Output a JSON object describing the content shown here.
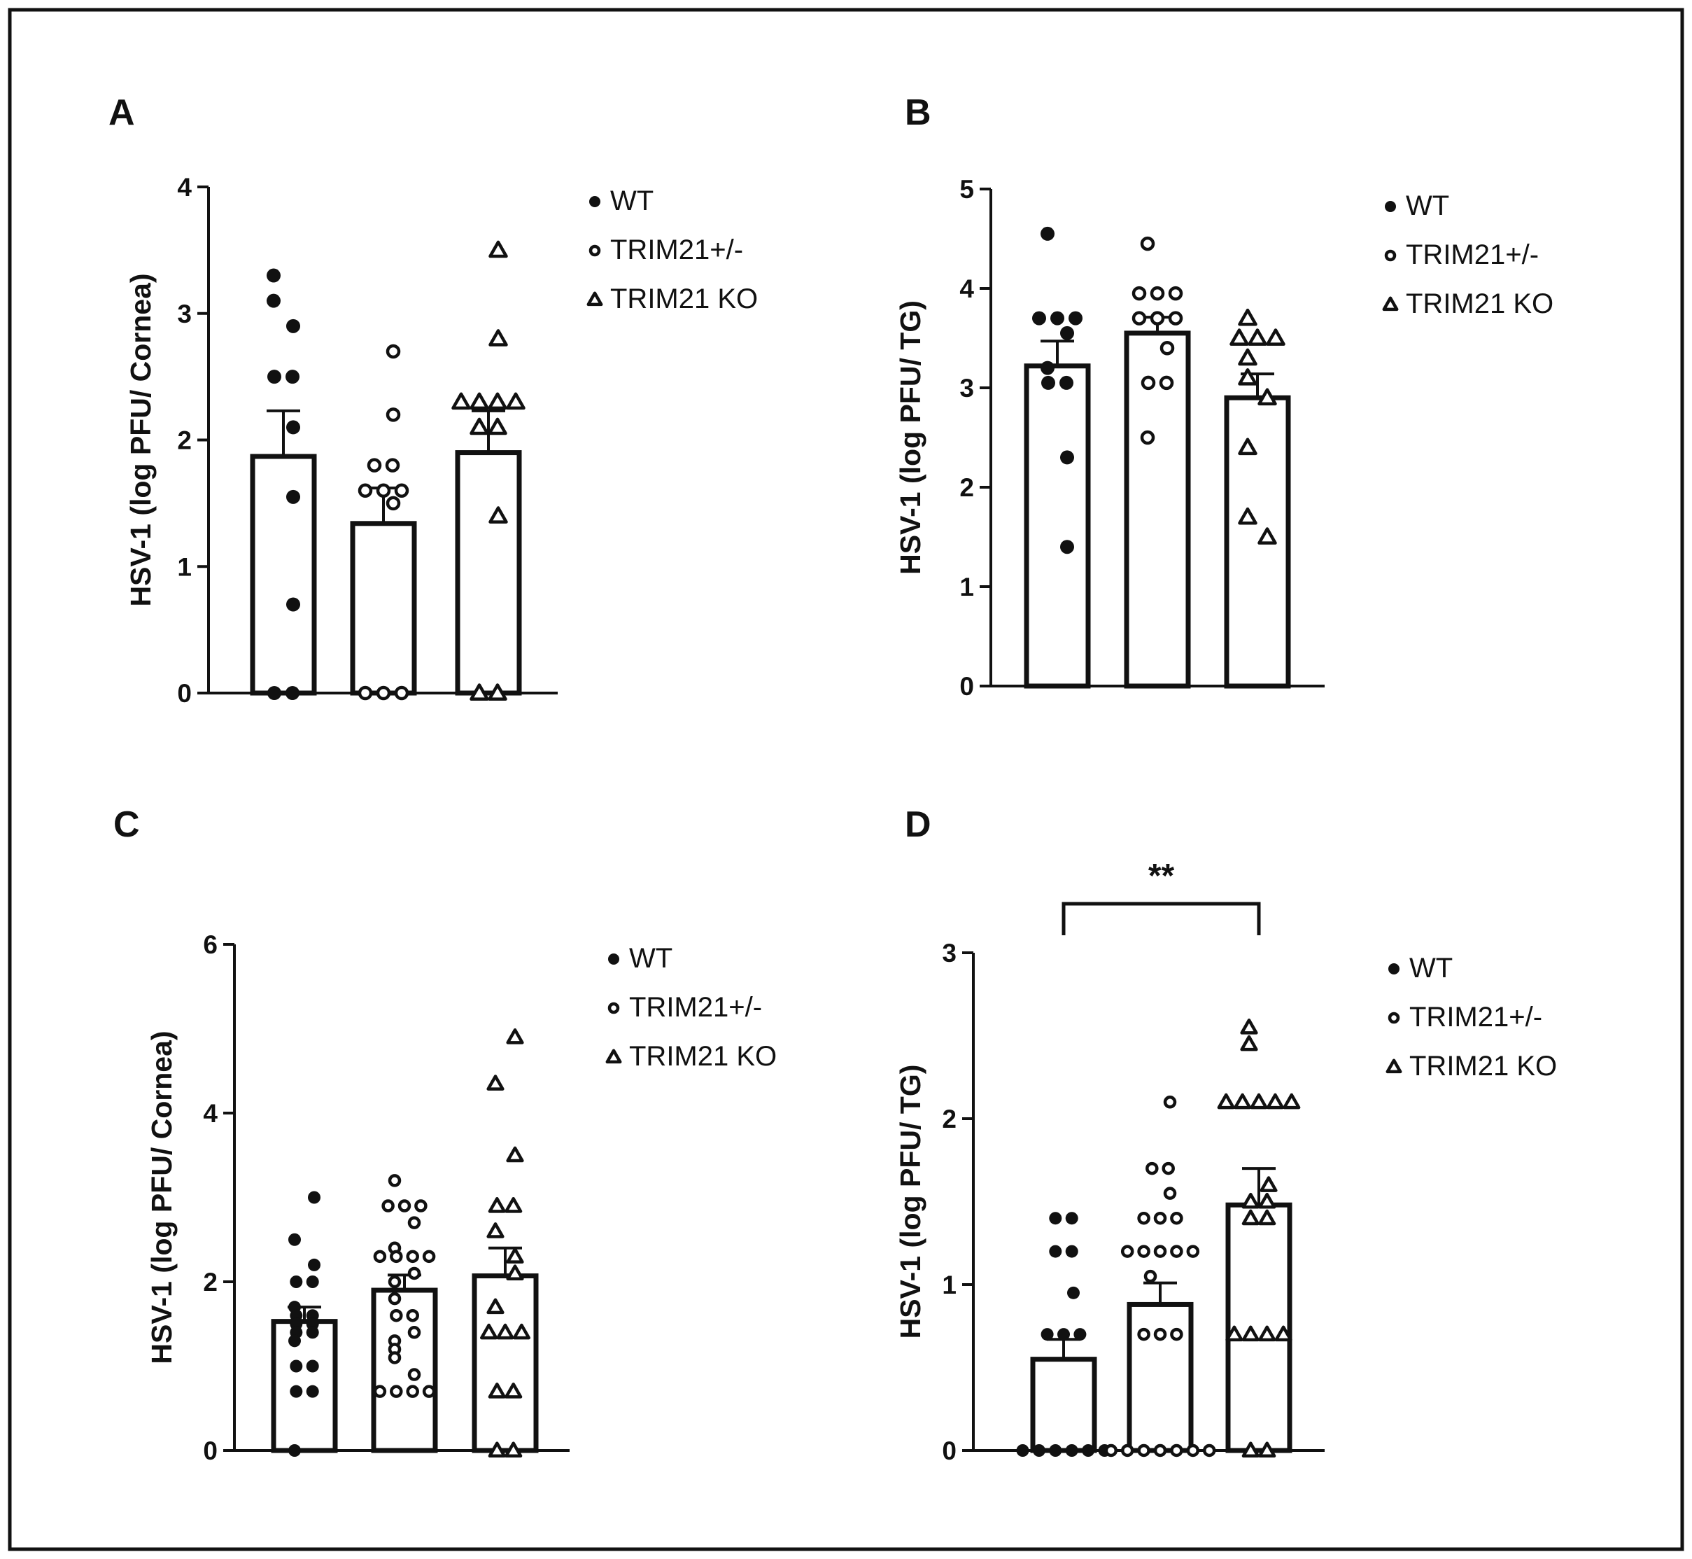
{
  "chart_data": [
    {
      "type": "bar",
      "panel": "A",
      "ylabel": "HSV-1 (log PFU/ Cornea)",
      "ylim": [
        0,
        4
      ],
      "yticks": [
        "0",
        "1",
        "2",
        "3",
        "4"
      ],
      "legend": [
        "WT",
        "TRIM21+/-",
        "TRIM21 KO"
      ],
      "legend_position": "right",
      "series": [
        {
          "name": "WT",
          "marker": "filled-circle",
          "mean": 1.87,
          "sem": 0.36,
          "points": [
            3.3,
            3.1,
            2.9,
            2.5,
            2.5,
            2.1,
            1.55,
            0.7,
            0,
            0
          ]
        },
        {
          "name": "TRIM21+/-",
          "marker": "open-circle",
          "mean": 1.34,
          "sem": 0.28,
          "points": [
            2.7,
            2.2,
            1.8,
            1.8,
            1.6,
            1.6,
            1.6,
            1.5,
            0,
            0,
            0
          ]
        },
        {
          "name": "TRIM21 KO",
          "marker": "open-triangle",
          "mean": 1.9,
          "sem": 0.33,
          "points": [
            3.5,
            2.8,
            2.3,
            2.3,
            2.3,
            2.3,
            2.1,
            2.1,
            1.4,
            0,
            0
          ]
        }
      ]
    },
    {
      "type": "bar",
      "panel": "B",
      "ylabel": "HSV-1 (log PFU/ TG)",
      "ylim": [
        0,
        5
      ],
      "yticks": [
        "0",
        "1",
        "2",
        "3",
        "4",
        "5"
      ],
      "legend": [
        "WT",
        "TRIM21+/-",
        "TRIM21 KO"
      ],
      "legend_position": "right",
      "series": [
        {
          "name": "WT",
          "marker": "filled-circle",
          "mean": 3.22,
          "sem": 0.25,
          "points": [
            4.55,
            3.7,
            3.7,
            3.7,
            3.55,
            3.2,
            3.05,
            3.05,
            2.3,
            1.4
          ]
        },
        {
          "name": "TRIM21+/-",
          "marker": "open-circle",
          "mean": 3.55,
          "sem": 0.16,
          "points": [
            4.45,
            3.95,
            3.95,
            3.95,
            3.7,
            3.7,
            3.7,
            3.4,
            3.05,
            3.05,
            2.5
          ]
        },
        {
          "name": "TRIM21 KO",
          "marker": "open-triangle",
          "mean": 2.9,
          "sem": 0.24,
          "points": [
            3.7,
            3.5,
            3.5,
            3.5,
            3.3,
            3.1,
            2.9,
            2.4,
            1.7,
            1.5
          ]
        }
      ]
    },
    {
      "type": "bar",
      "panel": "C",
      "ylabel": "HSV-1 (log PFU/ Cornea)",
      "ylim": [
        0,
        6
      ],
      "yticks": [
        "0",
        "2",
        "4",
        "6"
      ],
      "legend": [
        "WT",
        "TRIM21+/-",
        "TRIM21 KO"
      ],
      "legend_position": "right",
      "series": [
        {
          "name": "WT",
          "marker": "filled-circle",
          "mean": 1.53,
          "sem": 0.17,
          "points": [
            3.0,
            2.5,
            2.2,
            2.0,
            2.0,
            1.7,
            1.6,
            1.6,
            1.5,
            1.5,
            1.4,
            1.4,
            1.3,
            1.0,
            1.0,
            0.7,
            0.7,
            0
          ]
        },
        {
          "name": "TRIM21+/-",
          "marker": "open-circle",
          "mean": 1.9,
          "sem": 0.18,
          "points": [
            3.2,
            2.9,
            2.9,
            2.9,
            2.7,
            2.4,
            2.3,
            2.3,
            2.3,
            2.3,
            2.1,
            2.0,
            1.8,
            1.6,
            1.6,
            1.4,
            1.3,
            1.2,
            1.1,
            0.9,
            0.7,
            0.7,
            0.7,
            0.7
          ]
        },
        {
          "name": "TRIM21 KO",
          "marker": "open-triangle",
          "mean": 2.07,
          "sem": 0.33,
          "points": [
            4.9,
            4.35,
            3.5,
            2.9,
            2.9,
            2.6,
            2.3,
            2.1,
            1.7,
            1.4,
            1.4,
            1.4,
            0.7,
            0.7,
            0,
            0
          ]
        }
      ]
    },
    {
      "type": "bar",
      "panel": "D",
      "ylabel": "HSV-1 (log PFU/ TG)",
      "ylim": [
        0,
        3
      ],
      "yticks": [
        "0",
        "1",
        "2",
        "3"
      ],
      "legend": [
        "WT",
        "TRIM21+/-",
        "TRIM21 KO"
      ],
      "legend_position": "right",
      "significance": {
        "label": "**",
        "from": 0,
        "to": 2
      },
      "series": [
        {
          "name": "WT",
          "marker": "filled-circle",
          "mean": 0.55,
          "sem": 0.12,
          "points": [
            1.4,
            1.4,
            1.2,
            1.2,
            0.95,
            0.7,
            0.7,
            0.7,
            0,
            0,
            0,
            0,
            0,
            0
          ]
        },
        {
          "name": "TRIM21+/-",
          "marker": "open-circle",
          "mean": 0.88,
          "sem": 0.13,
          "points": [
            2.1,
            1.7,
            1.7,
            1.55,
            1.4,
            1.4,
            1.4,
            1.2,
            1.2,
            1.2,
            1.2,
            1.2,
            1.05,
            0.7,
            0.7,
            0.7,
            0,
            0,
            0,
            0,
            0,
            0,
            0
          ]
        },
        {
          "name": "TRIM21 KO",
          "marker": "open-triangle",
          "mean": 1.48,
          "sem": 0.22,
          "points": [
            2.55,
            2.45,
            2.1,
            2.1,
            2.1,
            2.1,
            2.1,
            1.6,
            1.5,
            1.5,
            1.4,
            1.4,
            0.7,
            0.7,
            0.7,
            0.7,
            0,
            0
          ]
        }
      ]
    }
  ]
}
